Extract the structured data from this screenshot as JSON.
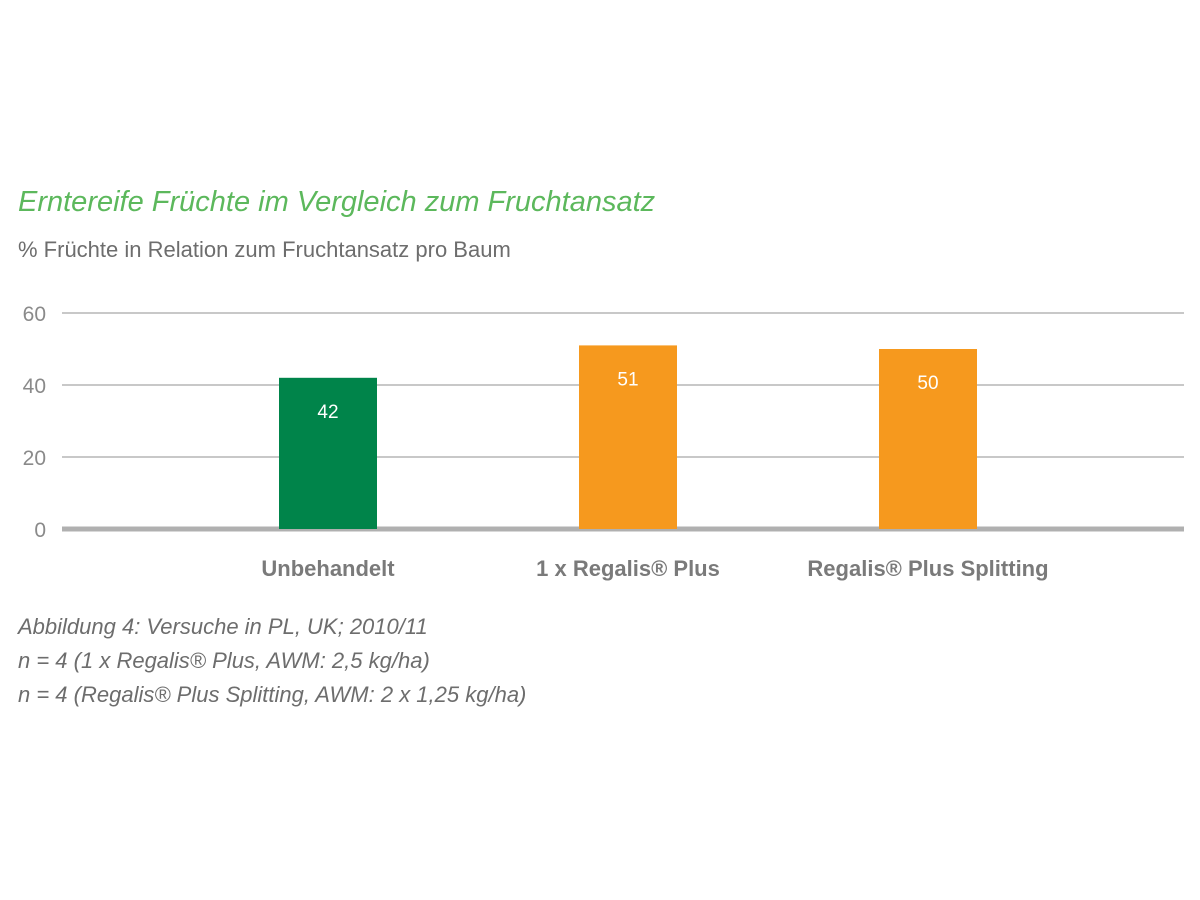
{
  "chart_data": {
    "type": "bar",
    "title": "Erntereife Früchte im Vergleich zum Fruchtansatz",
    "subtitle": "% Früchte in Relation zum Fruchtansatz pro Baum",
    "categories": [
      "Unbehandelt",
      "1 x Regalis® Plus",
      "Regalis® Plus Splitting"
    ],
    "values": [
      42,
      51,
      50
    ],
    "data_labels": [
      "42",
      "51",
      "50"
    ],
    "bar_colors": [
      "#00844a",
      "#f6991e",
      "#f6991e"
    ],
    "ylim": [
      0,
      60
    ],
    "yticks": [
      0,
      20,
      40,
      60
    ],
    "ytick_labels": [
      "0",
      "20",
      "40",
      "60"
    ],
    "xlabel": "",
    "ylabel": "",
    "grid": true,
    "legend": "none"
  },
  "notes": [
    "Abbildung 4: Versuche in PL, UK; 2010/11",
    "n = 4 (1 x Regalis® Plus, AWM: 2,5 kg/ha)",
    "n = 4 (Regalis® Plus Splitting, AWM: 2 x 1,25 kg/ha)"
  ],
  "colors": {
    "title": "#5cb85c",
    "text": "#6d6d6d",
    "grid": "#c8c8c8",
    "baseline": "#b0b0b0"
  }
}
